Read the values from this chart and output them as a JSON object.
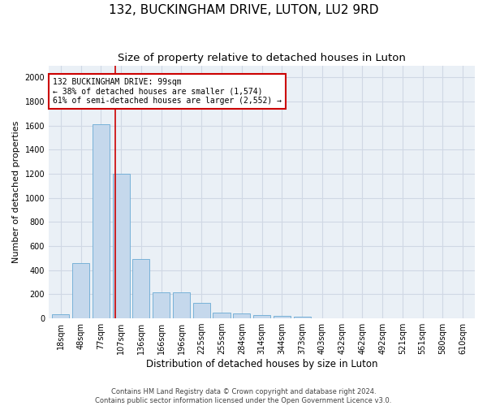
{
  "title": "132, BUCKINGHAM DRIVE, LUTON, LU2 9RD",
  "subtitle": "Size of property relative to detached houses in Luton",
  "xlabel": "Distribution of detached houses by size in Luton",
  "ylabel": "Number of detached properties",
  "footer_line1": "Contains HM Land Registry data © Crown copyright and database right 2024.",
  "footer_line2": "Contains public sector information licensed under the Open Government Licence v3.0.",
  "bar_labels": [
    "18sqm",
    "48sqm",
    "77sqm",
    "107sqm",
    "136sqm",
    "166sqm",
    "196sqm",
    "225sqm",
    "255sqm",
    "284sqm",
    "314sqm",
    "344sqm",
    "373sqm",
    "403sqm",
    "432sqm",
    "462sqm",
    "492sqm",
    "521sqm",
    "551sqm",
    "580sqm",
    "610sqm"
  ],
  "bar_values": [
    35,
    460,
    1610,
    1200,
    490,
    215,
    215,
    130,
    50,
    40,
    25,
    20,
    12,
    0,
    0,
    0,
    0,
    0,
    0,
    0,
    0
  ],
  "bar_color": "#c5d8ec",
  "bar_edge_color": "#6aaad4",
  "property_line_x": 2.72,
  "annotation_text": "132 BUCKINGHAM DRIVE: 99sqm\n← 38% of detached houses are smaller (1,574)\n61% of semi-detached houses are larger (2,552) →",
  "annotation_box_color": "#ffffff",
  "annotation_box_edge_color": "#cc0000",
  "vline_color": "#cc0000",
  "ylim": [
    0,
    2100
  ],
  "yticks": [
    0,
    200,
    400,
    600,
    800,
    1000,
    1200,
    1400,
    1600,
    1800,
    2000
  ],
  "grid_color": "#d0d8e4",
  "background_color": "#eaf0f6",
  "title_fontsize": 11,
  "subtitle_fontsize": 9.5,
  "ylabel_fontsize": 8,
  "xlabel_fontsize": 8.5,
  "tick_fontsize": 7,
  "annotation_fontsize": 7,
  "footer_fontsize": 6
}
